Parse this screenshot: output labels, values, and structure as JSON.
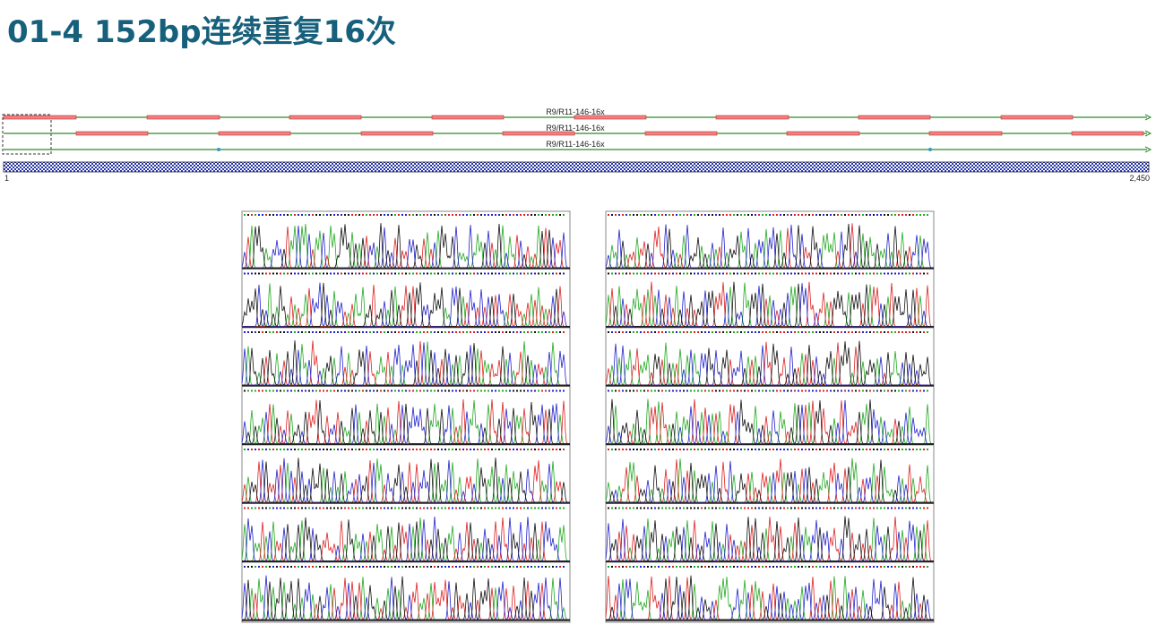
{
  "header": {
    "title": "01-4 152bp连续重复16次"
  },
  "map": {
    "tracks": [
      {
        "label": "R9/R11-146-16x"
      },
      {
        "label": "R9/R11-146-16x"
      },
      {
        "label": "R9/R11-146-16x"
      }
    ],
    "ruler": {
      "start": "1",
      "end": "2,450"
    }
  }
}
